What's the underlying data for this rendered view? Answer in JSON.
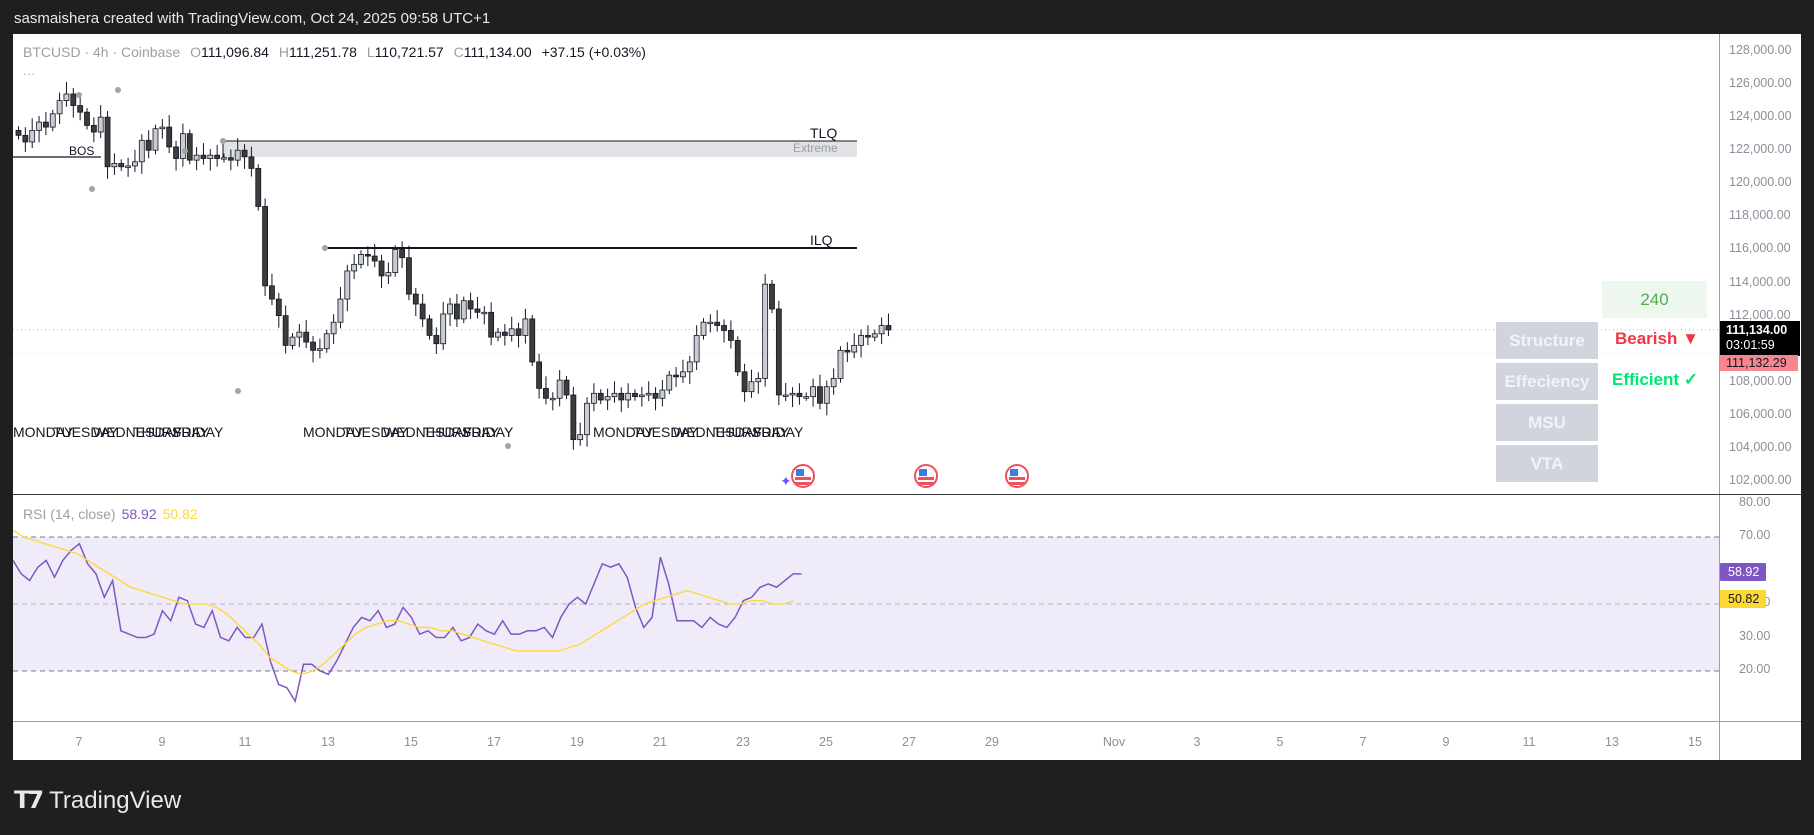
{
  "header": {
    "attribution": "sasmaishera created with TradingView.com, Oct 24, 2025 09:58 UTC+1"
  },
  "legend": {
    "symbol": "BTCUSD · 4h · Coinbase",
    "open_label": "O",
    "open": "111,096.84",
    "high_label": "H",
    "high": "111,251.78",
    "low_label": "L",
    "low": "110,721.57",
    "close_label": "C",
    "close": "111,134.00",
    "change": "+37.15 (+0.03%)",
    "more": "..."
  },
  "price_axis": {
    "labels": [
      "128,000.00",
      "126,000.00",
      "124,000.00",
      "122,000.00",
      "120,000.00",
      "118,000.00",
      "116,000.00",
      "114,000.00",
      "112,000.00",
      "108,000.00",
      "106,000.00",
      "104,000.00",
      "102,000.00"
    ],
    "current_price": "111,134.00",
    "countdown": "03:01:59",
    "bid_price": "111,132.29"
  },
  "annotations": {
    "bos": "BOS",
    "tlq": "TLQ",
    "extreme": "Extreme",
    "ilq": "ILQ",
    "day_labels": [
      "MONDAY",
      "TUESDAY",
      "WEDNESDAY",
      "THURSDAY",
      "FRIDAY"
    ]
  },
  "panel": {
    "timeframe": "240",
    "rows": [
      {
        "label": "Structure",
        "value": "Bearish ▼",
        "color": "#f23645"
      },
      {
        "label": "Effeciency",
        "value": "Efficient ✓",
        "color": "#00e676"
      },
      {
        "label": "MSU",
        "value": "",
        "color": ""
      },
      {
        "label": "VTA",
        "value": "",
        "color": ""
      }
    ]
  },
  "rsi": {
    "title": "RSI (14, close)",
    "value": "58.92",
    "ma_value": "50.82",
    "axis_labels": [
      "80.00",
      "70.00",
      "40.00",
      "30.00",
      "20.00"
    ],
    "colors": {
      "rsi": "#7e57c2",
      "ma": "#fdd835",
      "band": "#efebf8"
    }
  },
  "time_axis": {
    "labels": [
      "7",
      "9",
      "11",
      "13",
      "15",
      "17",
      "19",
      "21",
      "23",
      "25",
      "27",
      "29",
      "Nov",
      "3",
      "5",
      "7",
      "9",
      "11",
      "13",
      "15"
    ]
  },
  "footer": {
    "brand": "TradingView"
  },
  "colors": {
    "bull": "#c9ccd3",
    "bear": "#3c3c3c",
    "accent_bearish": "#f23645",
    "accent_efficient": "#00e676"
  },
  "chart_data": {
    "type": "candlestick",
    "title": "BTCUSD · 4h · Coinbase",
    "ylim": [
      101000,
      129000
    ],
    "closes": [
      122900,
      122500,
      123200,
      123700,
      123400,
      124200,
      125000,
      125400,
      124700,
      124300,
      123500,
      123100,
      124000,
      121000,
      121200,
      121000,
      121050,
      121300,
      122600,
      122000,
      123300,
      123400,
      122200,
      121500,
      123000,
      121400,
      121700,
      121500,
      121700,
      121500,
      121550,
      121400,
      122000,
      121600,
      120900,
      118600,
      113800,
      113000,
      112000,
      110200,
      110700,
      111000,
      110400,
      109900,
      110000,
      110900,
      111600,
      113000,
      114700,
      115100,
      115700,
      115600,
      115300,
      114400,
      114600,
      116000,
      115500,
      113300,
      112700,
      111800,
      110800,
      110300,
      112100,
      112700,
      111800,
      112900,
      112400,
      112200,
      112200,
      110700,
      111000,
      110800,
      111200,
      110800,
      111800,
      109200,
      107600,
      107000,
      107000,
      108100,
      107200,
      104500,
      104800,
      106700,
      107300,
      106900,
      107100,
      107300,
      106900,
      107300,
      107100,
      107200,
      107300,
      107000,
      107500,
      108400,
      108300,
      108600,
      109200,
      110800,
      111600,
      111600,
      111400,
      111100,
      110500,
      108600,
      107400,
      108000,
      108200,
      113900,
      112400,
      107200,
      107200,
      107300,
      107100,
      107100,
      107700,
      106700,
      107700,
      108200,
      109900,
      109800,
      110200,
      110800,
      110700,
      110900,
      111400,
      111134
    ],
    "rsi": {
      "current": 58.92,
      "ma": 50.82,
      "upper_band": 70,
      "mid": 50,
      "lower_band": 30
    }
  }
}
